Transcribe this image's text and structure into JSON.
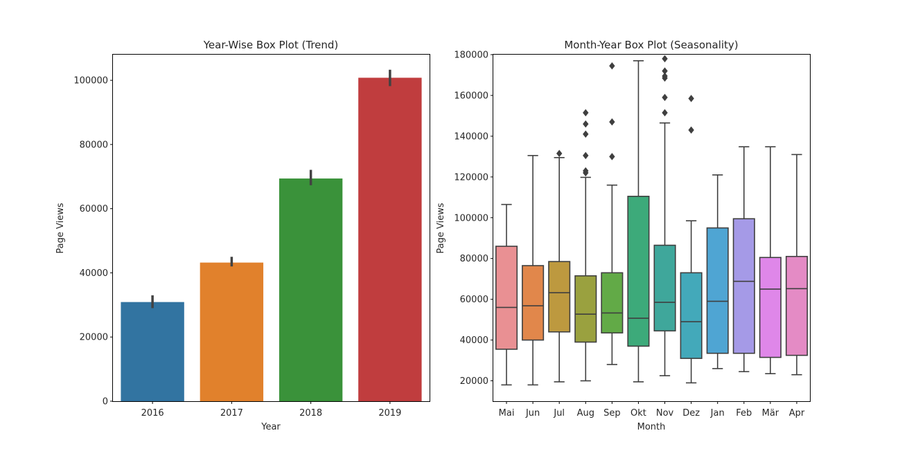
{
  "chart_data": [
    {
      "type": "bar",
      "title": "Year-Wise Box Plot (Trend)",
      "xlabel": "Year",
      "ylabel": "Page Views",
      "categories": [
        "2016",
        "2017",
        "2018",
        "2019"
      ],
      "values": [
        30900,
        43200,
        69400,
        100800
      ],
      "error_bars": [
        [
          29000,
          33000
        ],
        [
          42000,
          45000
        ],
        [
          67300,
          72100
        ],
        [
          98200,
          103300
        ]
      ],
      "colors": [
        "#3274a1",
        "#e1812c",
        "#3a923a",
        "#c03d3e"
      ],
      "yticks": [
        0,
        20000,
        40000,
        60000,
        80000,
        100000
      ],
      "ylim": [
        0,
        108000
      ],
      "grid": false
    },
    {
      "type": "box",
      "title": "Month-Year Box Plot (Seasonality)",
      "xlabel": "Month",
      "ylabel": "Page Views",
      "categories": [
        "Mai",
        "Jun",
        "Jul",
        "Aug",
        "Sep",
        "Okt",
        "Nov",
        "Dez",
        "Jan",
        "Feb",
        "Mär",
        "Apr"
      ],
      "boxes": [
        {
          "whisker_low": 18000,
          "q1": 35500,
          "median": 56000,
          "q3": 86000,
          "whisker_high": 106500,
          "outliers": []
        },
        {
          "whisker_low": 18000,
          "q1": 40000,
          "median": 56800,
          "q3": 76500,
          "whisker_high": 130500,
          "outliers": []
        },
        {
          "whisker_low": 19500,
          "q1": 44000,
          "median": 63200,
          "q3": 78500,
          "whisker_high": 129500,
          "outliers": [
            131500
          ]
        },
        {
          "whisker_low": 20000,
          "q1": 39000,
          "median": 52700,
          "q3": 71500,
          "whisker_high": 119800,
          "outliers": [
            122000,
            123000,
            130500,
            141000,
            146000,
            151500
          ]
        },
        {
          "whisker_low": 28000,
          "q1": 43500,
          "median": 53300,
          "q3": 73000,
          "whisker_high": 116000,
          "outliers": [
            130000,
            147000,
            174500
          ]
        },
        {
          "whisker_low": 19500,
          "q1": 37000,
          "median": 50700,
          "q3": 110500,
          "whisker_high": 177000,
          "outliers": []
        },
        {
          "whisker_low": 22500,
          "q1": 44500,
          "median": 58500,
          "q3": 86500,
          "whisker_high": 146500,
          "outliers": [
            151500,
            159000,
            168500,
            169500,
            172000,
            178000
          ]
        },
        {
          "whisker_low": 19000,
          "q1": 31000,
          "median": 49000,
          "q3": 73000,
          "whisker_high": 98500,
          "outliers": [
            143000,
            158500
          ]
        },
        {
          "whisker_low": 26000,
          "q1": 33500,
          "median": 59000,
          "q3": 95000,
          "whisker_high": 121000,
          "outliers": []
        },
        {
          "whisker_low": 24500,
          "q1": 33500,
          "median": 68800,
          "q3": 99500,
          "whisker_high": 134800,
          "outliers": []
        },
        {
          "whisker_low": 23500,
          "q1": 31500,
          "median": 65000,
          "q3": 80500,
          "whisker_high": 134800,
          "outliers": []
        },
        {
          "whisker_low": 23000,
          "q1": 32500,
          "median": 65200,
          "q3": 81000,
          "whisker_high": 131000,
          "outliers": []
        }
      ],
      "colors": [
        "#e99093",
        "#e1874b",
        "#bd993f",
        "#9aa13f",
        "#62aa47",
        "#3daa7a",
        "#3fa79b",
        "#43a9ba",
        "#4fa5d3",
        "#a59ae7",
        "#df87e9",
        "#e48bc5"
      ],
      "yticks": [
        20000,
        40000,
        60000,
        80000,
        100000,
        120000,
        140000,
        160000,
        180000
      ],
      "ylim": [
        10000,
        180000
      ],
      "grid": false
    }
  ]
}
